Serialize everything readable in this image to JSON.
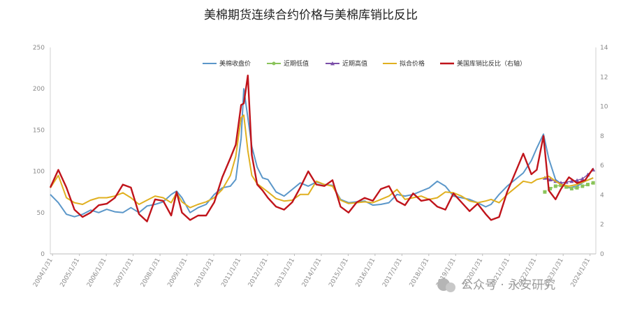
{
  "chart_data": {
    "type": "line",
    "title": "美棉期货连续合约价格与美棉库销比反比",
    "y_left": {
      "ticks": [
        0,
        50,
        100,
        150,
        200,
        250
      ],
      "ylim": [
        0,
        250
      ]
    },
    "y_right": {
      "ticks": [
        0,
        2,
        4,
        6,
        8,
        10,
        12,
        14
      ],
      "ylim": [
        0,
        14
      ]
    },
    "x_ticks": [
      "2004/1/31",
      "2005/1/31",
      "2006/1/31",
      "2007/1/31",
      "2008/1/31",
      "2009/1/31",
      "2010/1/31",
      "2011/1/31",
      "2012/1/31",
      "2013/1/31",
      "2014/1/31",
      "2015/1/31",
      "2016/1/31",
      "2017/1/31",
      "2018/1/31",
      "2019/1/31",
      "2020/1/31",
      "2021/1/31",
      "2022/1/31",
      "2023/1/31",
      "2024/1/31"
    ],
    "x_range": [
      2004.0,
      2024.3
    ],
    "legend_position": "top",
    "series": [
      {
        "name": "美棉收盘价",
        "axis": "left",
        "color": "#5b97c9",
        "marker": "none",
        "x": [
          2004.0,
          2004.3,
          2004.6,
          2004.9,
          2005.2,
          2005.5,
          2005.8,
          2006.1,
          2006.4,
          2006.7,
          2007.0,
          2007.3,
          2007.6,
          2007.9,
          2008.2,
          2008.5,
          2008.7,
          2008.9,
          2009.2,
          2009.5,
          2009.8,
          2010.1,
          2010.4,
          2010.7,
          2010.9,
          2011.1,
          2011.2,
          2011.35,
          2011.5,
          2011.7,
          2011.9,
          2012.1,
          2012.4,
          2012.7,
          2013.0,
          2013.3,
          2013.6,
          2013.9,
          2014.2,
          2014.5,
          2014.8,
          2015.1,
          2015.4,
          2015.7,
          2016.0,
          2016.3,
          2016.6,
          2016.9,
          2017.2,
          2017.5,
          2017.8,
          2018.1,
          2018.4,
          2018.7,
          2019.0,
          2019.3,
          2019.6,
          2019.9,
          2020.2,
          2020.4,
          2020.7,
          2021.0,
          2021.3,
          2021.6,
          2021.9,
          2022.1,
          2022.35,
          2022.55,
          2022.8,
          2023.0,
          2023.3,
          2023.6,
          2023.9,
          2024.2
        ],
        "values": [
          72,
          62,
          48,
          45,
          48,
          53,
          50,
          54,
          51,
          50,
          56,
          50,
          58,
          60,
          63,
          72,
          76,
          68,
          50,
          56,
          60,
          72,
          80,
          82,
          90,
          140,
          200,
          165,
          130,
          105,
          92,
          90,
          75,
          70,
          78,
          86,
          82,
          87,
          84,
          83,
          66,
          62,
          63,
          64,
          59,
          60,
          62,
          72,
          70,
          72,
          76,
          80,
          88,
          82,
          70,
          68,
          66,
          62,
          57,
          60,
          72,
          82,
          90,
          98,
          113,
          128,
          145,
          115,
          90,
          85,
          80,
          82,
          88,
          92
        ]
      },
      {
        "name": "近期低值",
        "axis": "left",
        "color": "#8ac45a",
        "marker": "dot",
        "x": [
          2022.4,
          2022.6,
          2022.8,
          2023.0,
          2023.2,
          2023.4,
          2023.6,
          2023.8,
          2024.0,
          2024.2
        ],
        "values": [
          75,
          79,
          82,
          83,
          81,
          79,
          80,
          82,
          84,
          86
        ]
      },
      {
        "name": "近期高值",
        "axis": "left",
        "color": "#7b4fa8",
        "marker": "tri",
        "x": [
          2022.4,
          2022.6,
          2022.8,
          2023.0,
          2023.2,
          2023.4,
          2023.6,
          2023.8,
          2024.0,
          2024.2
        ],
        "values": [
          92,
          90,
          88,
          86,
          87,
          88,
          89,
          91,
          96,
          102
        ]
      },
      {
        "name": "拟合价格",
        "axis": "left",
        "color": "#e0b020",
        "marker": "none",
        "x": [
          2004.0,
          2004.3,
          2004.6,
          2004.9,
          2005.2,
          2005.5,
          2005.8,
          2006.1,
          2006.4,
          2006.7,
          2007.0,
          2007.3,
          2007.6,
          2007.9,
          2008.2,
          2008.5,
          2008.7,
          2008.9,
          2009.2,
          2009.5,
          2009.8,
          2010.1,
          2010.4,
          2010.7,
          2010.9,
          2011.1,
          2011.2,
          2011.35,
          2011.5,
          2011.7,
          2011.9,
          2012.1,
          2012.4,
          2012.7,
          2013.0,
          2013.3,
          2013.6,
          2013.9,
          2014.2,
          2014.5,
          2014.8,
          2015.1,
          2015.4,
          2015.7,
          2016.0,
          2016.3,
          2016.6,
          2016.9,
          2017.2,
          2017.5,
          2017.8,
          2018.1,
          2018.4,
          2018.7,
          2019.0,
          2019.3,
          2019.6,
          2019.9,
          2020.2,
          2020.4,
          2020.7,
          2021.0,
          2021.3,
          2021.6,
          2021.9,
          2022.1,
          2022.35,
          2022.55,
          2022.8,
          2023.0,
          2023.3,
          2023.6,
          2023.9,
          2024.2
        ],
        "values": [
          80,
          95,
          68,
          62,
          60,
          65,
          68,
          68,
          70,
          74,
          68,
          60,
          65,
          70,
          68,
          62,
          74,
          63,
          56,
          60,
          63,
          68,
          78,
          95,
          118,
          165,
          168,
          125,
          95,
          85,
          80,
          75,
          67,
          64,
          65,
          72,
          72,
          88,
          84,
          82,
          65,
          61,
          62,
          63,
          62,
          66,
          70,
          78,
          66,
          68,
          70,
          66,
          68,
          75,
          74,
          70,
          64,
          62,
          64,
          66,
          62,
          72,
          80,
          88,
          86,
          90,
          92,
          94,
          88,
          84,
          82,
          84,
          88,
          92
        ]
      },
      {
        "name": "美国库销比反比（右轴）",
        "axis": "right",
        "color": "#c0141b",
        "marker": "none",
        "x": [
          2004.0,
          2004.3,
          2004.6,
          2004.9,
          2005.2,
          2005.5,
          2005.8,
          2006.1,
          2006.4,
          2006.7,
          2007.0,
          2007.3,
          2007.6,
          2007.9,
          2008.2,
          2008.5,
          2008.7,
          2008.9,
          2009.2,
          2009.5,
          2009.8,
          2010.1,
          2010.4,
          2010.7,
          2010.9,
          2011.1,
          2011.2,
          2011.35,
          2011.5,
          2011.7,
          2011.9,
          2012.1,
          2012.4,
          2012.7,
          2013.0,
          2013.3,
          2013.6,
          2013.9,
          2014.2,
          2014.5,
          2014.8,
          2015.1,
          2015.4,
          2015.7,
          2016.0,
          2016.3,
          2016.6,
          2016.9,
          2017.2,
          2017.5,
          2017.8,
          2018.1,
          2018.4,
          2018.7,
          2019.0,
          2019.3,
          2019.6,
          2019.9,
          2020.2,
          2020.4,
          2020.7,
          2021.0,
          2021.3,
          2021.6,
          2021.9,
          2022.1,
          2022.35,
          2022.55,
          2022.8,
          2023.0,
          2023.3,
          2023.6,
          2023.9,
          2024.2
        ],
        "values": [
          4.5,
          5.7,
          4.5,
          3.0,
          2.5,
          2.8,
          3.3,
          3.4,
          3.8,
          4.7,
          4.5,
          2.7,
          2.2,
          3.7,
          3.6,
          2.6,
          4.2,
          2.8,
          2.3,
          2.6,
          2.6,
          3.5,
          5.2,
          6.5,
          7.4,
          10.1,
          10.2,
          12.1,
          6.7,
          4.7,
          4.3,
          3.8,
          3.2,
          3.0,
          3.5,
          4.5,
          5.6,
          4.7,
          4.6,
          5.0,
          3.2,
          2.8,
          3.5,
          3.8,
          3.6,
          4.4,
          4.6,
          3.6,
          3.3,
          4.1,
          3.6,
          3.7,
          3.2,
          3.0,
          4.1,
          3.5,
          2.9,
          3.4,
          2.7,
          2.3,
          2.5,
          4.2,
          5.5,
          6.8,
          5.4,
          5.7,
          8.0,
          4.3,
          3.7,
          4.4,
          5.2,
          4.8,
          5.0,
          5.8
        ]
      }
    ],
    "watermark": "公众号 · 永安研究"
  }
}
